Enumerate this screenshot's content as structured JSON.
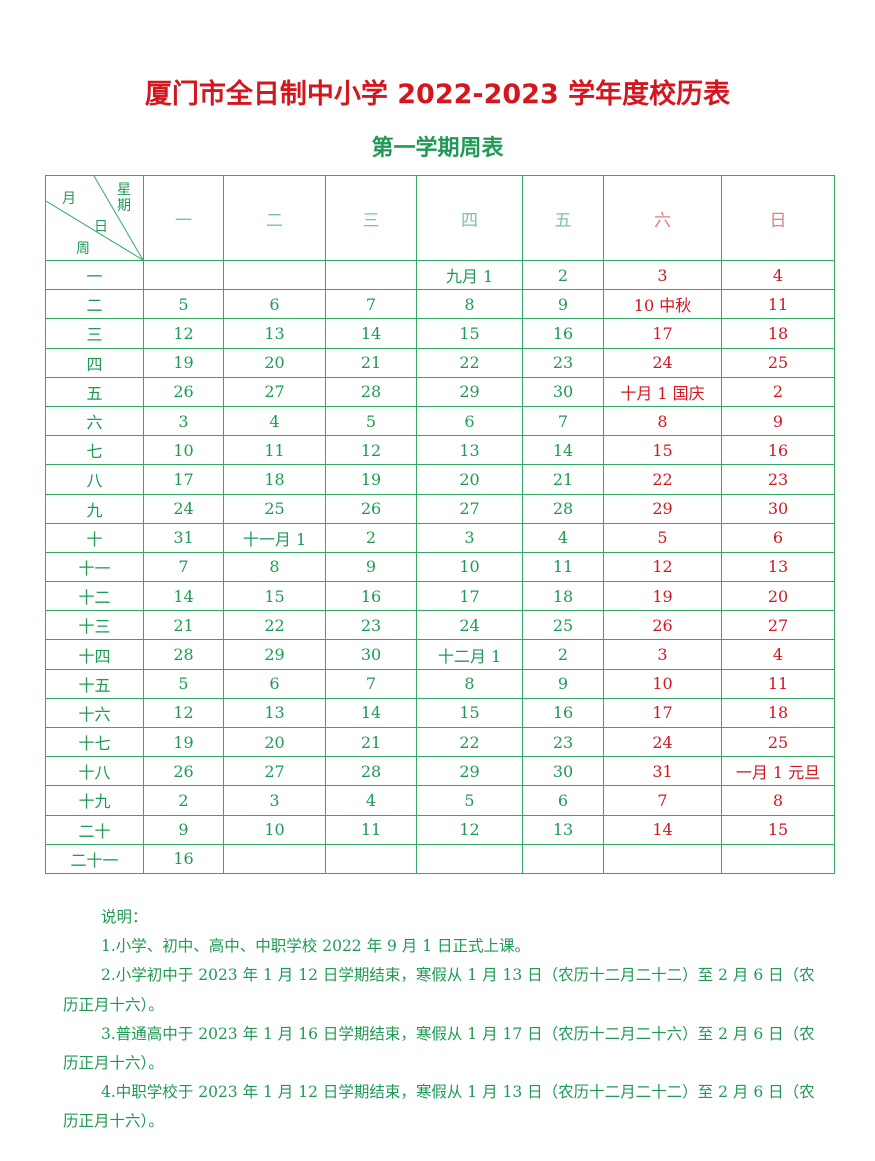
{
  "title": "厦门市全日制中小学 2022-2023 学年度校历表",
  "subtitle": "第一学期周表",
  "corner": {
    "month": "月",
    "weekday": "星期",
    "day": "日",
    "week": "周"
  },
  "weekdays": [
    "一",
    "二",
    "三",
    "四",
    "五",
    "六",
    "日"
  ],
  "colors": {
    "red": "#d4161f",
    "green": "#1f9a55"
  },
  "rows": [
    {
      "week": "一",
      "days": [
        "",
        "",
        "",
        "九月 1",
        "2",
        "3",
        "4"
      ]
    },
    {
      "week": "二",
      "days": [
        "5",
        "6",
        "7",
        "8",
        "9",
        "10 中秋",
        "11"
      ]
    },
    {
      "week": "三",
      "days": [
        "12",
        "13",
        "14",
        "15",
        "16",
        "17",
        "18"
      ]
    },
    {
      "week": "四",
      "days": [
        "19",
        "20",
        "21",
        "22",
        "23",
        "24",
        "25"
      ]
    },
    {
      "week": "五",
      "days": [
        "26",
        "27",
        "28",
        "29",
        "30",
        "十月 1 国庆",
        "2"
      ]
    },
    {
      "week": "六",
      "days": [
        "3",
        "4",
        "5",
        "6",
        "7",
        "8",
        "9"
      ]
    },
    {
      "week": "七",
      "days": [
        "10",
        "11",
        "12",
        "13",
        "14",
        "15",
        "16"
      ]
    },
    {
      "week": "八",
      "days": [
        "17",
        "18",
        "19",
        "20",
        "21",
        "22",
        "23"
      ]
    },
    {
      "week": "九",
      "days": [
        "24",
        "25",
        "26",
        "27",
        "28",
        "29",
        "30"
      ]
    },
    {
      "week": "十",
      "days": [
        "31",
        "十一月 1",
        "2",
        "3",
        "4",
        "5",
        "6"
      ]
    },
    {
      "week": "十一",
      "days": [
        "7",
        "8",
        "9",
        "10",
        "11",
        "12",
        "13"
      ]
    },
    {
      "week": "十二",
      "days": [
        "14",
        "15",
        "16",
        "17",
        "18",
        "19",
        "20"
      ]
    },
    {
      "week": "十三",
      "days": [
        "21",
        "22",
        "23",
        "24",
        "25",
        "26",
        "27"
      ]
    },
    {
      "week": "十四",
      "days": [
        "28",
        "29",
        "30",
        "十二月 1",
        "2",
        "3",
        "4"
      ]
    },
    {
      "week": "十五",
      "days": [
        "5",
        "6",
        "7",
        "8",
        "9",
        "10",
        "11"
      ]
    },
    {
      "week": "十六",
      "days": [
        "12",
        "13",
        "14",
        "15",
        "16",
        "17",
        "18"
      ]
    },
    {
      "week": "十七",
      "days": [
        "19",
        "20",
        "21",
        "22",
        "23",
        "24",
        "25"
      ]
    },
    {
      "week": "十八",
      "days": [
        "26",
        "27",
        "28",
        "29",
        "30",
        "31",
        "一月 1 元旦"
      ]
    },
    {
      "week": "十九",
      "days": [
        "2",
        "3",
        "4",
        "5",
        "6",
        "7",
        "8"
      ]
    },
    {
      "week": "二十",
      "days": [
        "9",
        "10",
        "11",
        "12",
        "13",
        "14",
        "15"
      ]
    },
    {
      "week": "二十一",
      "days": [
        "16",
        "",
        "",
        "",
        "",
        "",
        ""
      ]
    }
  ],
  "notes": {
    "heading": "说明：",
    "items": [
      "1.小学、初中、高中、中职学校 2022 年 9 月 1 日正式上课。",
      "2.小学初中于 2023 年 1 月 12 日学期结束，寒假从 1 月 13 日（农历十二月二十二）至 2 月 6 日（农历正月十六）。",
      "3.普通高中于 2023 年 1 月 16 日学期结束，寒假从 1 月 17 日（农历十二月二十六）至 2 月 6 日（农历正月十六）。",
      "4.中职学校于 2023 年 1 月 12 日学期结束，寒假从 1 月 13 日（农历十二月二十二）至 2 月 6 日（农历正月十六）。"
    ]
  }
}
